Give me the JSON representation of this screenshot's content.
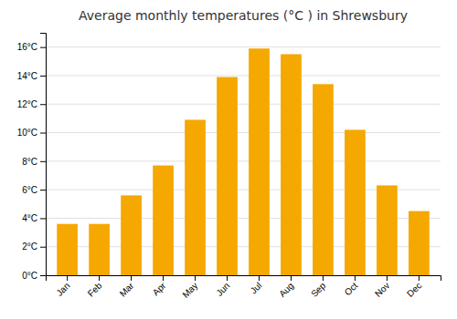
{
  "chart_data": {
    "type": "bar",
    "title": "Average monthly temperatures (°C ) in Shrewsbury",
    "categories": [
      "Jan",
      "Feb",
      "Mar",
      "Apr",
      "May",
      "Jun",
      "Jul",
      "Aug",
      "Sep",
      "Oct",
      "Nov",
      "Dec"
    ],
    "values": [
      3.6,
      3.6,
      5.6,
      7.7,
      10.9,
      13.9,
      15.9,
      15.5,
      13.4,
      10.2,
      6.3,
      4.5
    ],
    "color": "#F5A800",
    "ylim": [
      0,
      17
    ],
    "yticks": [
      {
        "value": 0,
        "label": "0°C"
      },
      {
        "value": 2,
        "label": "2°C"
      },
      {
        "value": 4,
        "label": "4°C"
      },
      {
        "value": 6,
        "label": "6°C"
      },
      {
        "value": 8,
        "label": "8°C"
      },
      {
        "value": 10,
        "label": "10°C"
      },
      {
        "value": 12,
        "label": "12°C"
      },
      {
        "value": 14,
        "label": "14°C"
      },
      {
        "value": 16,
        "label": "16°C"
      }
    ],
    "grid": true
  }
}
